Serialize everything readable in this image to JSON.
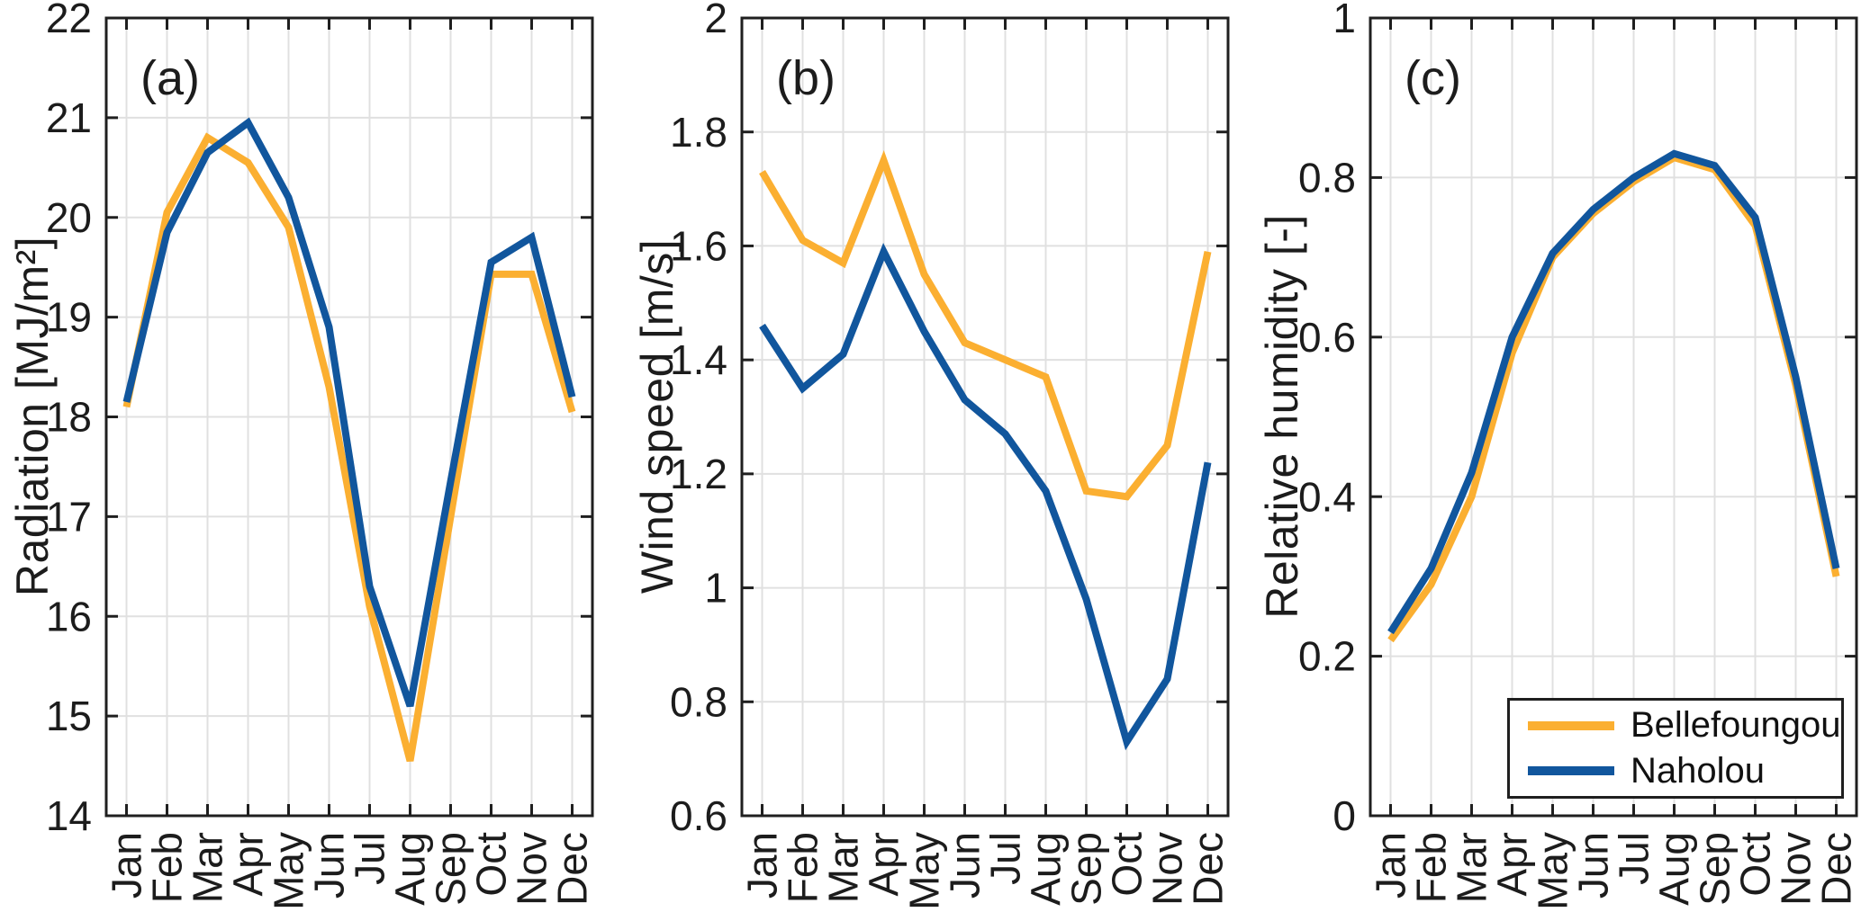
{
  "figure": {
    "background": "#FFFFFF",
    "axis_color": "#1F1F1F",
    "grid_color": "#E0E0E0",
    "text_color": "#1C1C1C",
    "series_colors": {
      "bellefoungou": "#FBAF31",
      "naholou": "#11569D"
    }
  },
  "legend": {
    "position": "bottom-right-inside-panel-c",
    "entries": [
      {
        "label": "Bellefoungou",
        "color": "#FBAF31"
      },
      {
        "label": "Naholou",
        "color": "#11569D"
      }
    ]
  },
  "chart_data": [
    {
      "type": "line",
      "panel_label": "(a)",
      "ylabel": "Radiation [MJ/m²]",
      "ylim": [
        14,
        22
      ],
      "yticks": [
        14,
        15,
        16,
        17,
        18,
        19,
        20,
        21,
        22
      ],
      "ytick_labels": [
        "14",
        "15",
        "16",
        "17",
        "18",
        "19",
        "20",
        "21",
        "22"
      ],
      "categories": [
        "Jan",
        "Feb",
        "Mar",
        "Apr",
        "May",
        "Jun",
        "Jul",
        "Aug",
        "Sep",
        "Oct",
        "Nov",
        "Dec"
      ],
      "grid": true,
      "legend": false,
      "series": [
        {
          "name": "Bellefoungou",
          "color": "#FBAF31",
          "values": [
            18.1,
            20.05,
            20.8,
            20.55,
            19.9,
            18.3,
            16.1,
            14.55,
            17.0,
            19.43,
            19.43,
            18.05
          ]
        },
        {
          "name": "Naholou",
          "color": "#11569D",
          "values": [
            18.15,
            19.85,
            20.65,
            20.95,
            20.2,
            18.9,
            16.3,
            15.1,
            17.35,
            19.55,
            19.8,
            18.2
          ]
        }
      ]
    },
    {
      "type": "line",
      "panel_label": "(b)",
      "ylabel": "Wind speed [m/s]",
      "ylim": [
        0.6,
        2.0
      ],
      "yticks": [
        0.6,
        0.8,
        1.0,
        1.2,
        1.4,
        1.6,
        1.8,
        2.0
      ],
      "ytick_labels": [
        "0.6",
        "0.8",
        "1",
        "1.2",
        "1.4",
        "1.6",
        "1.8",
        "2"
      ],
      "categories": [
        "Jan",
        "Feb",
        "Mar",
        "Apr",
        "May",
        "Jun",
        "Jul",
        "Aug",
        "Sep",
        "Oct",
        "Nov",
        "Dec"
      ],
      "grid": true,
      "legend": false,
      "series": [
        {
          "name": "Bellefoungou",
          "color": "#FBAF31",
          "values": [
            1.73,
            1.61,
            1.57,
            1.75,
            1.55,
            1.43,
            1.4,
            1.37,
            1.17,
            1.16,
            1.25,
            1.59
          ]
        },
        {
          "name": "Naholou",
          "color": "#11569D",
          "values": [
            1.46,
            1.35,
            1.41,
            1.59,
            1.45,
            1.33,
            1.27,
            1.17,
            0.98,
            0.73,
            0.84,
            1.22
          ]
        }
      ]
    },
    {
      "type": "line",
      "panel_label": "(c)",
      "ylabel": "Relative humidity [-]",
      "ylim": [
        0,
        1
      ],
      "yticks": [
        0,
        0.2,
        0.4,
        0.6,
        0.8,
        1.0
      ],
      "ytick_labels": [
        "0",
        "0.2",
        "0.4",
        "0.6",
        "0.8",
        "1"
      ],
      "categories": [
        "Jan",
        "Feb",
        "Mar",
        "Apr",
        "May",
        "Jun",
        "Jul",
        "Aug",
        "Sep",
        "Oct",
        "Nov",
        "Dec"
      ],
      "grid": true,
      "legend": true,
      "series": [
        {
          "name": "Bellefoungou",
          "color": "#FBAF31",
          "values": [
            0.22,
            0.29,
            0.4,
            0.58,
            0.7,
            0.755,
            0.795,
            0.825,
            0.81,
            0.74,
            0.54,
            0.3
          ]
        },
        {
          "name": "Naholou",
          "color": "#11569D",
          "values": [
            0.23,
            0.31,
            0.43,
            0.6,
            0.705,
            0.76,
            0.8,
            0.83,
            0.815,
            0.75,
            0.55,
            0.31
          ]
        }
      ]
    }
  ]
}
